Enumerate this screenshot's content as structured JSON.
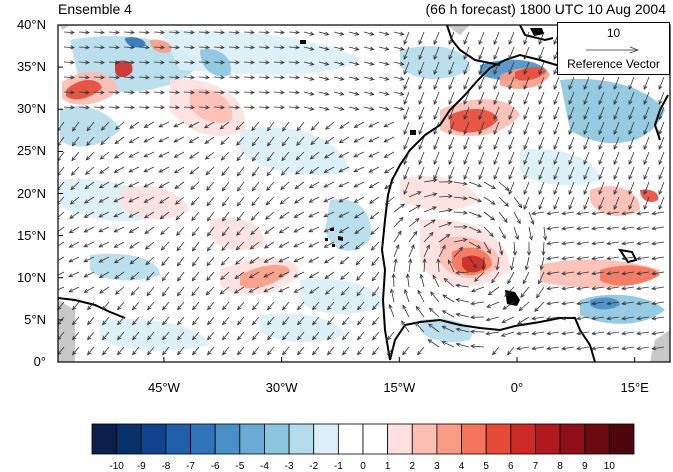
{
  "title_left": "Ensemble 4",
  "title_right": "(66 h forecast) 1800 UTC 10 Aug 2004",
  "lat_ticks": [
    {
      "label": "40°N",
      "value": 40
    },
    {
      "label": "35°N",
      "value": 35
    },
    {
      "label": "30°N",
      "value": 30
    },
    {
      "label": "25°N",
      "value": 25
    },
    {
      "label": "20°N",
      "value": 20
    },
    {
      "label": "15°N",
      "value": 15
    },
    {
      "label": "10°N",
      "value": 10
    },
    {
      "label": "5°N",
      "value": 5
    },
    {
      "label": "0°",
      "value": 0
    }
  ],
  "lon_ticks": [
    {
      "label": "45°W",
      "value": -45
    },
    {
      "label": "30°W",
      "value": -30
    },
    {
      "label": "15°W",
      "value": -15
    },
    {
      "label": "0°",
      "value": 0
    },
    {
      "label": "15°E",
      "value": 15
    }
  ],
  "reference_vector": {
    "value": "10",
    "label": "Reference Vector"
  },
  "colorbar": {
    "labels": [
      "-10",
      "-9",
      "-8",
      "-7",
      "-6",
      "-5",
      "-4",
      "-3",
      "-2",
      "-1",
      "0",
      "1",
      "2",
      "3",
      "4",
      "5",
      "6",
      "7",
      "8",
      "9",
      "10"
    ],
    "colors": [
      "#0b1f4b",
      "#08306b",
      "#12428e",
      "#1f5fa8",
      "#2f74b8",
      "#4a8fc6",
      "#6aaad4",
      "#8cc5de",
      "#b4dceb",
      "#dceff7",
      "#ffffff",
      "#ffffff",
      "#fde0df",
      "#fcbdb3",
      "#f99c86",
      "#f4755c",
      "#e84a38",
      "#cc2a26",
      "#b01a1f",
      "#8e0f17",
      "#6b0a10",
      "#4d060b"
    ]
  },
  "colors": {
    "land": "#ffffff",
    "missing": "#c8c8c8",
    "coast": "#000000",
    "arrow": "#333333"
  }
}
